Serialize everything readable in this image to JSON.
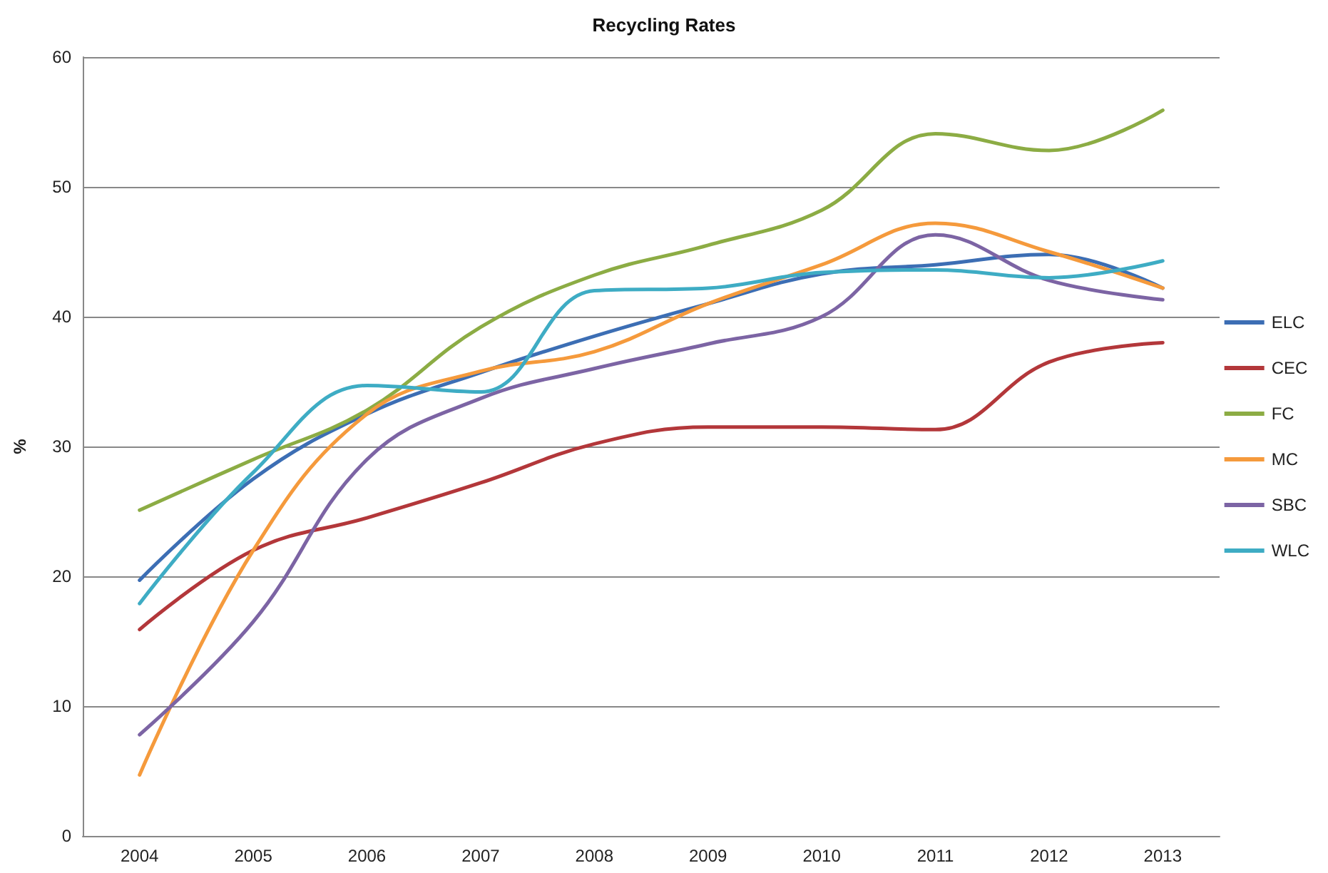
{
  "chart_data": {
    "type": "line",
    "title": "Recycling Rates",
    "ylabel": "%",
    "categories": [
      "2004",
      "2005",
      "2006",
      "2007",
      "2008",
      "2009",
      "2010",
      "2011",
      "2012",
      "2013"
    ],
    "series": [
      {
        "name": "ELC",
        "color": "#3c6eb4",
        "values": [
          19.7,
          27.5,
          32.5,
          35.7,
          38.5,
          41,
          43.3,
          44,
          44.8,
          42.2
        ]
      },
      {
        "name": "CEC",
        "color": "#b3373a",
        "values": [
          15.9,
          22,
          24.5,
          27.2,
          30.2,
          31.5,
          31.5,
          31.3,
          36.5,
          38
        ]
      },
      {
        "name": "FC",
        "color": "#8cac44",
        "values": [
          25.1,
          29,
          32.8,
          39.2,
          43.2,
          45.5,
          48.2,
          54.1,
          52.8,
          55.9
        ]
      },
      {
        "name": "MC",
        "color": "#f59a3c",
        "values": [
          4.7,
          22,
          32.5,
          35.8,
          37.3,
          41,
          44,
          47.2,
          45,
          42.2
        ]
      },
      {
        "name": "SBC",
        "color": "#7c64a4",
        "values": [
          7.8,
          16.5,
          29,
          33.7,
          36,
          37.9,
          40,
          46.3,
          42.8,
          41.3
        ]
      },
      {
        "name": "WLC",
        "color": "#3eacc4",
        "values": [
          17.9,
          28,
          34.7,
          34.2,
          42,
          42.2,
          43.4,
          43.6,
          43,
          44.3
        ]
      }
    ],
    "ylim": [
      0,
      60
    ],
    "yticks": [
      0,
      10,
      20,
      30,
      40,
      50,
      60
    ],
    "grid": "y",
    "legend": "right",
    "marker": "none",
    "line_style": "solid"
  }
}
